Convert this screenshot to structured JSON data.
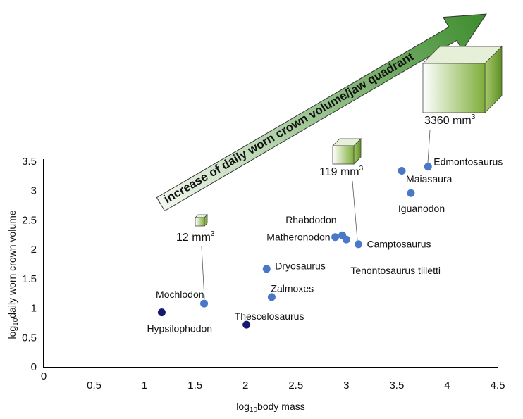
{
  "chart_data": {
    "type": "scatter",
    "xlabel": {
      "prefix": "log",
      "sub": "10",
      "text": "body mass"
    },
    "ylabel": {
      "prefix": "log",
      "sub": "10",
      "text": "daily worn crown volume"
    },
    "arrow_text": "increase of daily worn crown volume/jaw quadrant",
    "cube_labels": [
      {
        "text": "12 mm",
        "sup": "3"
      },
      {
        "text": "119 mm",
        "sup": "3"
      },
      {
        "text": "3360 mm",
        "sup": "3"
      }
    ],
    "labels": [
      "Edmontosaurus",
      "Maiasaura",
      "Iguanodon",
      "Rhabdodon",
      "Matheronodon",
      "Tenontosaurus tilletti",
      "Camptosaurus",
      "Dryosaurus",
      "Zalmoxes",
      "Mochlodon",
      "Hypsilophodon",
      "Thescelosaurus"
    ],
    "x": [
      3.81,
      3.55,
      3.64,
      2.96,
      2.89,
      3.0,
      3.12,
      2.21,
      2.26,
      1.59,
      1.17,
      2.01
    ],
    "y": [
      3.42,
      3.35,
      2.97,
      2.25,
      2.22,
      2.18,
      2.1,
      1.68,
      1.2,
      1.09,
      0.94,
      0.73
    ],
    "colors": [
      "#4a78c8",
      "#4a78c8",
      "#4a78c8",
      "#4a78c8",
      "#4a78c8",
      "#4a78c8",
      "#4a78c8",
      "#4a78c8",
      "#4a78c8",
      "#4a78c8",
      "#141a6e",
      "#141a6e"
    ],
    "xlim": [
      0,
      4.5
    ],
    "ylim": [
      0,
      3.5
    ],
    "xticks": [
      0,
      0.5,
      1,
      1.5,
      2,
      2.5,
      3,
      3.5,
      4,
      4.5
    ],
    "yticks": [
      0,
      0.5,
      1,
      1.5,
      2,
      2.5,
      3,
      3.5
    ]
  }
}
